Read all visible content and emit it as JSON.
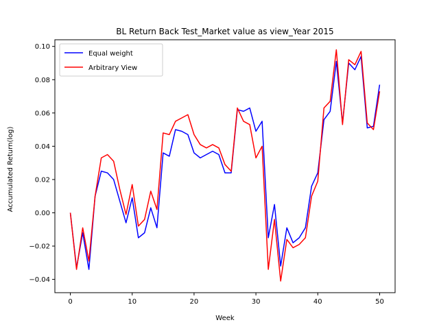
{
  "chart_data": {
    "type": "line",
    "title": "BL Return Back Test_Market value as view_Year 2015",
    "xlabel": "Week",
    "ylabel": "Accumulated Return(log)",
    "xlim": [
      -2.5,
      52.5
    ],
    "ylim": [
      -0.048,
      0.104
    ],
    "xticks": [
      0,
      10,
      20,
      30,
      40,
      50
    ],
    "yticks": [
      -0.04,
      -0.02,
      0.0,
      0.02,
      0.04,
      0.06,
      0.08,
      0.1
    ],
    "ytick_labels": [
      "−0.04",
      "−0.02",
      "0.00",
      "0.02",
      "0.04",
      "0.06",
      "0.08",
      "0.10"
    ],
    "grid": false,
    "legend_position": "top-left",
    "x": [
      0,
      1,
      2,
      3,
      4,
      5,
      6,
      7,
      8,
      9,
      10,
      11,
      12,
      13,
      14,
      15,
      16,
      17,
      18,
      19,
      20,
      21,
      22,
      23,
      24,
      25,
      26,
      27,
      28,
      29,
      30,
      31,
      32,
      33,
      34,
      35,
      36,
      37,
      38,
      39,
      40,
      41,
      42,
      43,
      44,
      45,
      46,
      47,
      48,
      49,
      50
    ],
    "series": [
      {
        "name": "Equal weight",
        "color": "#0000ff",
        "values": [
          0.0,
          -0.033,
          -0.012,
          -0.034,
          0.01,
          0.025,
          0.024,
          0.02,
          0.007,
          -0.006,
          0.009,
          -0.015,
          -0.012,
          0.003,
          -0.009,
          0.036,
          0.034,
          0.05,
          0.049,
          0.047,
          0.036,
          0.033,
          0.035,
          0.037,
          0.035,
          0.024,
          0.024,
          0.062,
          0.061,
          0.063,
          0.049,
          0.055,
          -0.015,
          0.005,
          -0.032,
          -0.009,
          -0.018,
          -0.015,
          -0.009,
          0.016,
          0.024,
          0.056,
          0.061,
          0.091,
          0.054,
          0.09,
          0.086,
          0.094,
          0.051,
          0.052,
          0.077
        ]
      },
      {
        "name": "Arbitrary View",
        "color": "#ff0000",
        "values": [
          0.0,
          -0.034,
          -0.009,
          -0.029,
          0.01,
          0.033,
          0.035,
          0.031,
          0.014,
          -0.001,
          0.017,
          -0.008,
          -0.004,
          0.013,
          0.002,
          0.048,
          0.047,
          0.055,
          0.057,
          0.059,
          0.047,
          0.041,
          0.039,
          0.041,
          0.039,
          0.029,
          0.025,
          0.063,
          0.055,
          0.053,
          0.033,
          0.04,
          -0.034,
          -0.004,
          -0.041,
          -0.016,
          -0.021,
          -0.019,
          -0.015,
          0.01,
          0.019,
          0.063,
          0.067,
          0.098,
          0.053,
          0.092,
          0.089,
          0.097,
          0.054,
          0.05,
          0.073
        ]
      }
    ]
  }
}
